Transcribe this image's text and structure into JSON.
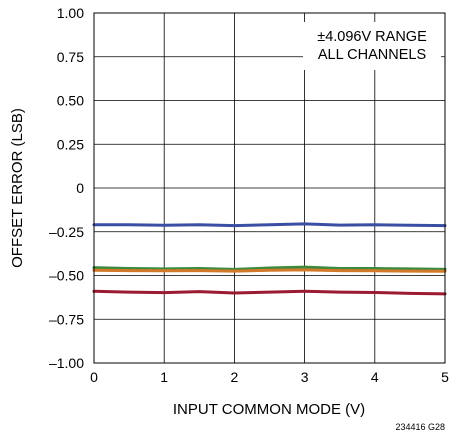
{
  "chart_data": {
    "type": "line",
    "title": "",
    "xlabel": "INPUT COMMON MODE (V)",
    "ylabel": "OFFSET ERROR (LSB)",
    "xlim": [
      0,
      5
    ],
    "ylim": [
      -1.0,
      1.0
    ],
    "x_ticks": [
      0,
      1,
      2,
      3,
      4,
      5
    ],
    "x_tick_labels": [
      "0",
      "1",
      "2",
      "3",
      "4",
      "5"
    ],
    "y_ticks": [
      1.0,
      0.75,
      0.5,
      0.25,
      0,
      -0.25,
      -0.5,
      -0.75,
      -1.0
    ],
    "y_tick_labels": [
      "1.00",
      "0.75",
      "0.50",
      "0.25",
      "0",
      "–0.25",
      "–0.50",
      "–0.75",
      "–1.00"
    ],
    "grid": true,
    "annotations": [
      "±4.096V RANGE",
      "ALL CHANNELS"
    ],
    "series": [
      {
        "color": "#3a4fa3",
        "x": [
          0,
          0.5,
          1,
          1.5,
          2,
          2.5,
          3,
          3.5,
          4,
          4.5,
          5
        ],
        "y": [
          -0.21,
          -0.21,
          -0.213,
          -0.21,
          -0.215,
          -0.21,
          -0.205,
          -0.212,
          -0.21,
          -0.213,
          -0.215
        ]
      },
      {
        "color": "#3d8a3f",
        "x": [
          0,
          0.5,
          1,
          1.5,
          2,
          2.5,
          3,
          3.5,
          4,
          4.5,
          5
        ],
        "y": [
          -0.455,
          -0.46,
          -0.462,
          -0.46,
          -0.465,
          -0.457,
          -0.452,
          -0.46,
          -0.46,
          -0.462,
          -0.465
        ]
      },
      {
        "color": "#d37a2a",
        "x": [
          0,
          0.5,
          1,
          1.5,
          2,
          2.5,
          3,
          3.5,
          4,
          4.5,
          5
        ],
        "y": [
          -0.47,
          -0.472,
          -0.473,
          -0.472,
          -0.475,
          -0.47,
          -0.468,
          -0.472,
          -0.473,
          -0.475,
          -0.476
        ]
      },
      {
        "color": "#9b1b30",
        "x": [
          0,
          0.5,
          1,
          1.5,
          2,
          2.5,
          3,
          3.5,
          4,
          4.5,
          5
        ],
        "y": [
          -0.59,
          -0.595,
          -0.598,
          -0.592,
          -0.6,
          -0.595,
          -0.59,
          -0.595,
          -0.597,
          -0.602,
          -0.605
        ]
      }
    ]
  },
  "figure_note": "234416 G28"
}
